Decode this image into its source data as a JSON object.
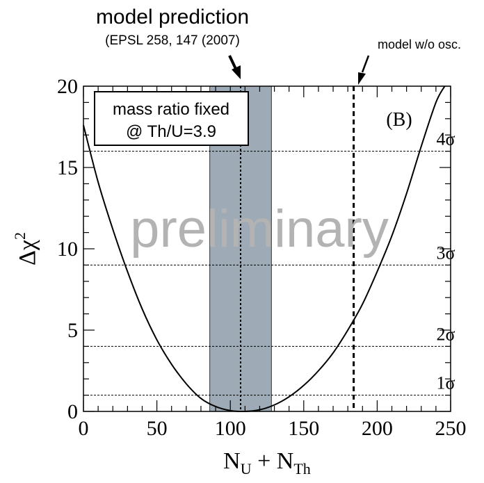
{
  "chart_data": {
    "type": "line",
    "panel_label": "(B)",
    "xlabel": {
      "main": "N",
      "sub1": "U",
      "plus": " + N",
      "sub2": "Th"
    },
    "ylabel": {
      "main": "Δχ",
      "sup": "2"
    },
    "xlim": [
      0,
      250
    ],
    "ylim": [
      0,
      20
    ],
    "x_ticks": [
      0,
      50,
      100,
      150,
      200,
      250
    ],
    "y_ticks": [
      0,
      5,
      10,
      15,
      20
    ],
    "x_tick_labels": [
      "0",
      "50",
      "100",
      "150",
      "200",
      "250"
    ],
    "y_tick_labels": [
      "0",
      "5",
      "10",
      "15",
      "20"
    ],
    "series": [
      {
        "x": [
          0,
          10,
          20,
          30,
          40,
          50,
          60,
          70,
          80,
          90,
          100,
          110,
          120,
          130,
          140,
          150,
          160,
          170,
          180,
          190,
          200,
          210,
          220,
          230,
          240,
          246
        ],
        "y": [
          17.6,
          14.1,
          11.2,
          8.6,
          6.3,
          4.4,
          2.9,
          1.7,
          0.8,
          0.3,
          0.05,
          0.0,
          0.1,
          0.4,
          0.9,
          1.6,
          2.5,
          3.6,
          5.0,
          6.6,
          8.6,
          10.8,
          13.4,
          16.3,
          19.0,
          20.0
        ]
      }
    ],
    "sigma_levels": [
      {
        "label": "1σ",
        "y": 1
      },
      {
        "label": "2σ",
        "y": 4
      },
      {
        "label": "3σ",
        "y": 9
      },
      {
        "label": "4σ",
        "y": 16
      }
    ],
    "prediction_band": {
      "x_min": 86,
      "x_max": 128,
      "center": 107,
      "color": "#9eabb6"
    },
    "no_osc_line_x": 184,
    "legend_box": {
      "line1": "mass ratio fixed",
      "line2": "@ Th/U=3.9"
    },
    "watermark": "preliminary",
    "annotations": {
      "model_prediction": "model prediction",
      "reference": "(EPSL 258, 147 (2007)",
      "no_osc": "model w/o osc."
    }
  }
}
